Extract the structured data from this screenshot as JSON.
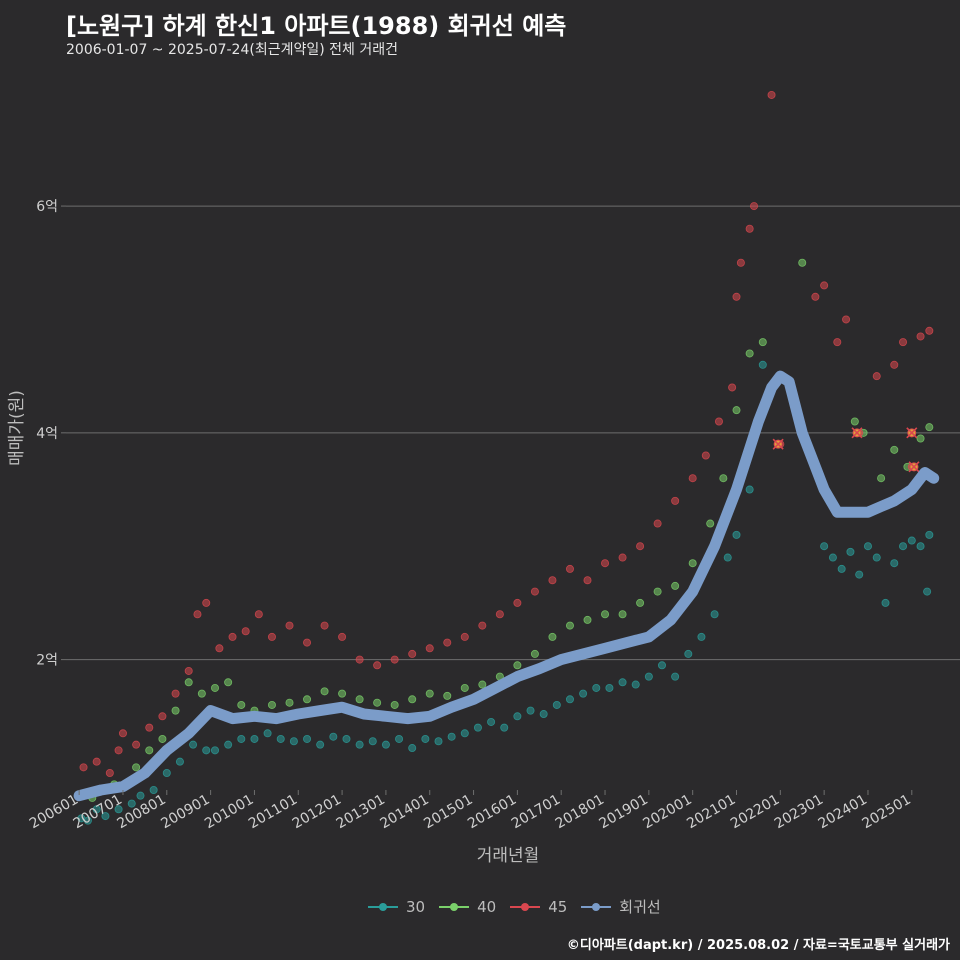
{
  "title": "[노원구] 하계 한신1 아파트(1988) 회귀선 예측",
  "subtitle": "2006-01-07 ~ 2025-07-24(최근계약일) 전체 거래건",
  "footer": "©디아파트(dapt.kr) / 2025.08.02 / 자료=국토교통부 실거래가",
  "colors": {
    "background": "#2b2a2c",
    "grid": "#6e6e6e",
    "s30": "#2a9d9a",
    "s40": "#7ad06a",
    "s45": "#d9474f",
    "trend": "#7b9cc9"
  },
  "chart_data": {
    "type": "scatter",
    "xlabel": "거래년월",
    "ylabel": "매매가(원)",
    "xlim": [
      2005.7,
      2026.1
    ],
    "ylim": [
      0.85,
      7.2
    ],
    "y_ticks": [
      {
        "value": 2,
        "label": "2억"
      },
      {
        "value": 4,
        "label": "4억"
      },
      {
        "value": 6,
        "label": "6억"
      }
    ],
    "x_ticks": [
      {
        "value": 2006.0,
        "label": "200601"
      },
      {
        "value": 2007.0,
        "label": "200701"
      },
      {
        "value": 2008.0,
        "label": "200801"
      },
      {
        "value": 2009.0,
        "label": "200901"
      },
      {
        "value": 2010.0,
        "label": "201001"
      },
      {
        "value": 2011.0,
        "label": "201101"
      },
      {
        "value": 2012.0,
        "label": "201201"
      },
      {
        "value": 2013.0,
        "label": "201301"
      },
      {
        "value": 2014.0,
        "label": "201401"
      },
      {
        "value": 2015.0,
        "label": "201501"
      },
      {
        "value": 2016.0,
        "label": "201601"
      },
      {
        "value": 2017.0,
        "label": "201701"
      },
      {
        "value": 2018.0,
        "label": "201801"
      },
      {
        "value": 2019.0,
        "label": "201901"
      },
      {
        "value": 2020.0,
        "label": "202001"
      },
      {
        "value": 2021.0,
        "label": "202101"
      },
      {
        "value": 2022.0,
        "label": "202201"
      },
      {
        "value": 2023.0,
        "label": "202301"
      },
      {
        "value": 2024.0,
        "label": "202401"
      },
      {
        "value": 2025.0,
        "label": "202501"
      }
    ],
    "grid": true,
    "legend_position": "bottom",
    "series": [
      {
        "name": "30",
        "color": "#2a9d9a",
        "points": [
          [
            2006.05,
            0.6
          ],
          [
            2006.2,
            0.58
          ],
          [
            2006.4,
            0.68
          ],
          [
            2006.6,
            0.62
          ],
          [
            2006.9,
            0.68
          ],
          [
            2007.2,
            0.73
          ],
          [
            2007.4,
            0.8
          ],
          [
            2007.7,
            0.85
          ],
          [
            2008.0,
            1.0
          ],
          [
            2008.3,
            1.1
          ],
          [
            2008.6,
            1.25
          ],
          [
            2008.9,
            1.2
          ],
          [
            2009.1,
            1.2
          ],
          [
            2009.4,
            1.25
          ],
          [
            2009.7,
            1.3
          ],
          [
            2010.0,
            1.3
          ],
          [
            2010.3,
            1.35
          ],
          [
            2010.6,
            1.3
          ],
          [
            2010.9,
            1.28
          ],
          [
            2011.2,
            1.3
          ],
          [
            2011.5,
            1.25
          ],
          [
            2011.8,
            1.32
          ],
          [
            2012.1,
            1.3
          ],
          [
            2012.4,
            1.25
          ],
          [
            2012.7,
            1.28
          ],
          [
            2013.0,
            1.25
          ],
          [
            2013.3,
            1.3
          ],
          [
            2013.6,
            1.22
          ],
          [
            2013.9,
            1.3
          ],
          [
            2014.2,
            1.28
          ],
          [
            2014.5,
            1.32
          ],
          [
            2014.8,
            1.35
          ],
          [
            2015.1,
            1.4
          ],
          [
            2015.4,
            1.45
          ],
          [
            2015.7,
            1.4
          ],
          [
            2016.0,
            1.5
          ],
          [
            2016.3,
            1.55
          ],
          [
            2016.6,
            1.52
          ],
          [
            2016.9,
            1.6
          ],
          [
            2017.2,
            1.65
          ],
          [
            2017.5,
            1.7
          ],
          [
            2017.8,
            1.75
          ],
          [
            2018.1,
            1.75
          ],
          [
            2018.4,
            1.8
          ],
          [
            2018.7,
            1.78
          ],
          [
            2019.0,
            1.85
          ],
          [
            2019.3,
            1.95
          ],
          [
            2019.6,
            1.85
          ],
          [
            2019.9,
            2.05
          ],
          [
            2020.2,
            2.2
          ],
          [
            2020.5,
            2.4
          ],
          [
            2020.8,
            2.9
          ],
          [
            2021.0,
            3.1
          ],
          [
            2021.3,
            3.5
          ],
          [
            2021.6,
            4.6
          ],
          [
            2023.0,
            3.0
          ],
          [
            2023.2,
            2.9
          ],
          [
            2023.4,
            2.8
          ],
          [
            2023.6,
            2.95
          ],
          [
            2023.8,
            2.75
          ],
          [
            2024.0,
            3.0
          ],
          [
            2024.2,
            2.9
          ],
          [
            2024.4,
            2.5
          ],
          [
            2024.6,
            2.85
          ],
          [
            2024.8,
            3.0
          ],
          [
            2025.0,
            3.05
          ],
          [
            2025.2,
            3.0
          ],
          [
            2025.35,
            2.6
          ],
          [
            2025.4,
            3.1
          ]
        ]
      },
      {
        "name": "40",
        "color": "#7ad06a",
        "points": [
          [
            2006.3,
            0.78
          ],
          [
            2006.8,
            0.9
          ],
          [
            2007.3,
            1.05
          ],
          [
            2007.6,
            1.2
          ],
          [
            2007.9,
            1.3
          ],
          [
            2008.2,
            1.55
          ],
          [
            2008.5,
            1.8
          ],
          [
            2008.8,
            1.7
          ],
          [
            2009.1,
            1.75
          ],
          [
            2009.4,
            1.8
          ],
          [
            2009.7,
            1.6
          ],
          [
            2010.0,
            1.55
          ],
          [
            2010.4,
            1.6
          ],
          [
            2010.8,
            1.62
          ],
          [
            2011.2,
            1.65
          ],
          [
            2011.6,
            1.72
          ],
          [
            2012.0,
            1.7
          ],
          [
            2012.4,
            1.65
          ],
          [
            2012.8,
            1.62
          ],
          [
            2013.2,
            1.6
          ],
          [
            2013.6,
            1.65
          ],
          [
            2014.0,
            1.7
          ],
          [
            2014.4,
            1.68
          ],
          [
            2014.8,
            1.75
          ],
          [
            2015.2,
            1.78
          ],
          [
            2015.6,
            1.85
          ],
          [
            2016.0,
            1.95
          ],
          [
            2016.4,
            2.05
          ],
          [
            2016.8,
            2.2
          ],
          [
            2017.2,
            2.3
          ],
          [
            2017.6,
            2.35
          ],
          [
            2018.0,
            2.4
          ],
          [
            2018.4,
            2.4
          ],
          [
            2018.8,
            2.5
          ],
          [
            2019.2,
            2.6
          ],
          [
            2019.6,
            2.65
          ],
          [
            2020.0,
            2.85
          ],
          [
            2020.4,
            3.2
          ],
          [
            2020.7,
            3.6
          ],
          [
            2021.0,
            4.2
          ],
          [
            2021.3,
            4.7
          ],
          [
            2021.6,
            4.8
          ],
          [
            2022.5,
            5.5
          ],
          [
            2023.7,
            4.1
          ],
          [
            2023.9,
            4.0
          ],
          [
            2024.3,
            3.6
          ],
          [
            2024.6,
            3.85
          ],
          [
            2024.9,
            3.7
          ],
          [
            2025.2,
            3.95
          ],
          [
            2025.4,
            4.05
          ]
        ]
      },
      {
        "name": "45",
        "color": "#d9474f",
        "points": [
          [
            2006.1,
            1.05
          ],
          [
            2006.4,
            1.1
          ],
          [
            2006.7,
            1.0
          ],
          [
            2006.9,
            1.2
          ],
          [
            2007.0,
            1.35
          ],
          [
            2007.3,
            1.25
          ],
          [
            2007.6,
            1.4
          ],
          [
            2007.9,
            1.5
          ],
          [
            2008.2,
            1.7
          ],
          [
            2008.5,
            1.9
          ],
          [
            2008.7,
            2.4
          ],
          [
            2008.9,
            2.5
          ],
          [
            2009.2,
            2.1
          ],
          [
            2009.5,
            2.2
          ],
          [
            2009.8,
            2.25
          ],
          [
            2010.1,
            2.4
          ],
          [
            2010.4,
            2.2
          ],
          [
            2010.8,
            2.3
          ],
          [
            2011.2,
            2.15
          ],
          [
            2011.6,
            2.3
          ],
          [
            2012.0,
            2.2
          ],
          [
            2012.4,
            2.0
          ],
          [
            2012.8,
            1.95
          ],
          [
            2013.2,
            2.0
          ],
          [
            2013.6,
            2.05
          ],
          [
            2014.0,
            2.1
          ],
          [
            2014.4,
            2.15
          ],
          [
            2014.8,
            2.2
          ],
          [
            2015.2,
            2.3
          ],
          [
            2015.6,
            2.4
          ],
          [
            2016.0,
            2.5
          ],
          [
            2016.4,
            2.6
          ],
          [
            2016.8,
            2.7
          ],
          [
            2017.2,
            2.8
          ],
          [
            2017.6,
            2.7
          ],
          [
            2018.0,
            2.85
          ],
          [
            2018.4,
            2.9
          ],
          [
            2018.8,
            3.0
          ],
          [
            2019.2,
            3.2
          ],
          [
            2019.6,
            3.4
          ],
          [
            2020.0,
            3.6
          ],
          [
            2020.3,
            3.8
          ],
          [
            2020.6,
            4.1
          ],
          [
            2020.9,
            4.4
          ],
          [
            2021.0,
            5.2
          ],
          [
            2021.1,
            5.5
          ],
          [
            2021.3,
            5.8
          ],
          [
            2021.4,
            6.0
          ],
          [
            2021.8,
            6.98
          ],
          [
            2022.0,
            3.9
          ],
          [
            2022.8,
            5.2
          ],
          [
            2023.0,
            5.3
          ],
          [
            2023.3,
            4.8
          ],
          [
            2023.5,
            5.0
          ],
          [
            2023.8,
            4.0
          ],
          [
            2024.2,
            4.5
          ],
          [
            2024.6,
            4.6
          ],
          [
            2024.8,
            4.8
          ],
          [
            2025.0,
            4.0
          ],
          [
            2025.0,
            3.7
          ],
          [
            2025.2,
            4.85
          ],
          [
            2025.4,
            4.9
          ]
        ]
      },
      {
        "name": "회귀선",
        "color": "#7b9cc9",
        "type": "line",
        "points": [
          [
            2006.0,
            0.8
          ],
          [
            2006.5,
            0.85
          ],
          [
            2007.0,
            0.88
          ],
          [
            2007.5,
            1.0
          ],
          [
            2008.0,
            1.2
          ],
          [
            2008.5,
            1.35
          ],
          [
            2009.0,
            1.55
          ],
          [
            2009.5,
            1.48
          ],
          [
            2010.0,
            1.5
          ],
          [
            2010.5,
            1.48
          ],
          [
            2011.0,
            1.52
          ],
          [
            2011.5,
            1.55
          ],
          [
            2012.0,
            1.58
          ],
          [
            2012.5,
            1.52
          ],
          [
            2013.0,
            1.5
          ],
          [
            2013.5,
            1.48
          ],
          [
            2014.0,
            1.5
          ],
          [
            2014.5,
            1.58
          ],
          [
            2015.0,
            1.65
          ],
          [
            2015.5,
            1.75
          ],
          [
            2016.0,
            1.85
          ],
          [
            2016.5,
            1.92
          ],
          [
            2017.0,
            2.0
          ],
          [
            2017.5,
            2.05
          ],
          [
            2018.0,
            2.1
          ],
          [
            2018.5,
            2.15
          ],
          [
            2019.0,
            2.2
          ],
          [
            2019.5,
            2.35
          ],
          [
            2020.0,
            2.6
          ],
          [
            2020.5,
            3.0
          ],
          [
            2021.0,
            3.5
          ],
          [
            2021.5,
            4.1
          ],
          [
            2021.8,
            4.4
          ],
          [
            2022.0,
            4.5
          ],
          [
            2022.2,
            4.45
          ],
          [
            2022.5,
            4.0
          ],
          [
            2022.8,
            3.7
          ],
          [
            2023.0,
            3.5
          ],
          [
            2023.3,
            3.3
          ],
          [
            2023.6,
            3.3
          ],
          [
            2024.0,
            3.3
          ],
          [
            2024.3,
            3.35
          ],
          [
            2024.6,
            3.4
          ],
          [
            2025.0,
            3.5
          ],
          [
            2025.3,
            3.65
          ],
          [
            2025.5,
            3.6
          ]
        ]
      }
    ],
    "highlighted_points": [
      [
        2021.95,
        3.9
      ],
      [
        2023.75,
        4.0
      ],
      [
        2025.0,
        4.0
      ],
      [
        2025.05,
        3.7
      ]
    ]
  }
}
